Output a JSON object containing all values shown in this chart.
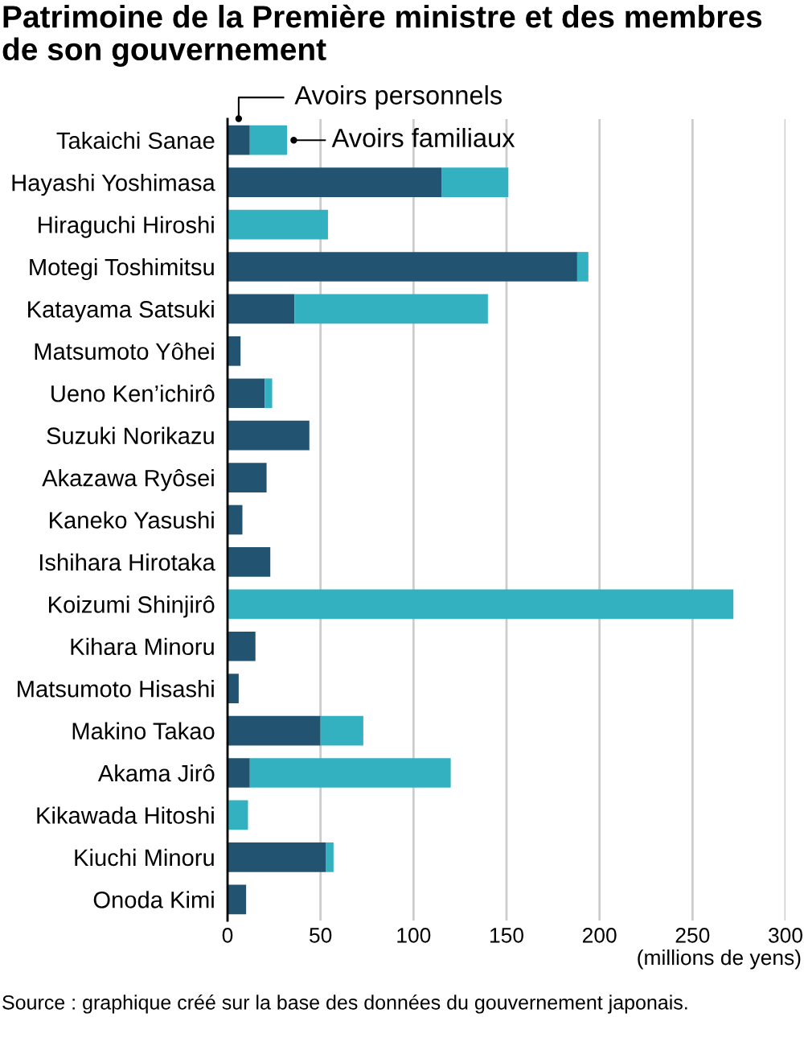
{
  "chart_data": {
    "type": "bar",
    "orientation": "horizontal",
    "stacked": true,
    "title": "Patrimoine de la Première ministre et des membres de son gouvernement",
    "xlabel": "(millions de yens)",
    "categories": [
      "Takaichi Sanae",
      "Hayashi Yoshimasa",
      "Hiraguchi Hiroshi",
      "Motegi Toshimitsu",
      "Katayama Satsuki",
      "Matsumoto Yôhei",
      "Ueno Ken’ichirô",
      "Suzuki Norikazu",
      "Akazawa Ryôsei",
      "Kaneko Yasushi",
      "Ishihara Hirotaka",
      "Koizumi Shinjirô",
      "Kihara Minoru",
      "Matsumoto Hisashi",
      "Makino Takao",
      "Akama Jirô",
      "Kikawada Hitoshi",
      "Kiuchi Minoru",
      "Onoda Kimi"
    ],
    "series": [
      {
        "name": "Avoirs personnels",
        "color": "#225472",
        "values": [
          12,
          115,
          0,
          188,
          36,
          7,
          20,
          44,
          21,
          8,
          23,
          0,
          15,
          6,
          50,
          12,
          0,
          53,
          10
        ]
      },
      {
        "name": "Avoirs familiaux",
        "color": "#33b1c0",
        "values": [
          20,
          36,
          54,
          6,
          104,
          0,
          4,
          0,
          0,
          0,
          0,
          272,
          0,
          0,
          23,
          108,
          11,
          4,
          0
        ]
      }
    ],
    "xlim": [
      0,
      300
    ],
    "xticks": [
      0,
      50,
      100,
      150,
      200,
      250,
      300
    ],
    "grid": "x",
    "annotations": [
      "Source : graphique créé sur la base des données du gouvernement japonais."
    ]
  }
}
